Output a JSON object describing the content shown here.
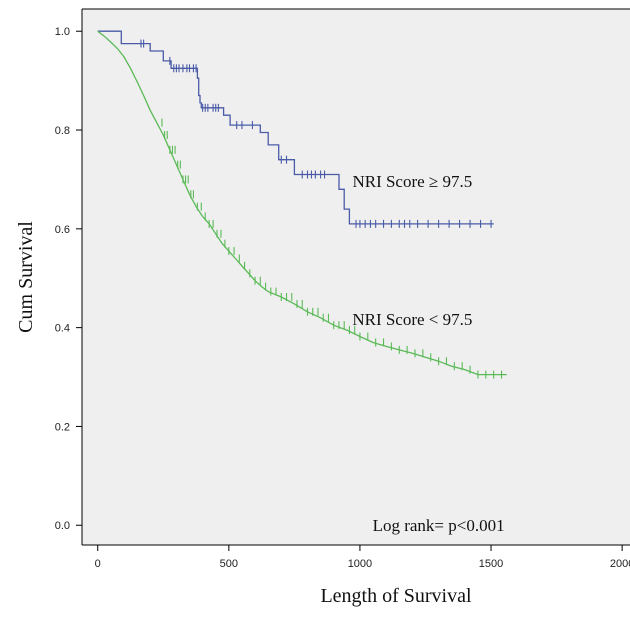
{
  "chart_data": {
    "type": "line",
    "subtype": "kaplan-meier",
    "xlabel": "Length of Survival",
    "ylabel": "Cum Survival",
    "xlim": [
      -60,
      2030
    ],
    "ylim": [
      -0.04,
      1.045
    ],
    "xticks": [
      0,
      500,
      1000,
      1500,
      2000
    ],
    "xtick_labels": [
      "0",
      "500",
      "1000",
      "1500",
      "2000"
    ],
    "yticks": [
      0.0,
      0.2,
      0.4,
      0.6,
      0.8,
      1.0
    ],
    "ytick_labels": [
      "0.0",
      "0.2",
      "0.4",
      "0.6",
      "0.8",
      "1.0"
    ],
    "grid": false,
    "background": "#efefef",
    "series": [
      {
        "name": "NRI Score ≥ 97.5",
        "color": "#4a5ba8",
        "points": [
          [
            0,
            1.0
          ],
          [
            90,
            1.0
          ],
          [
            90,
            0.975
          ],
          [
            200,
            0.975
          ],
          [
            200,
            0.96
          ],
          [
            250,
            0.96
          ],
          [
            250,
            0.94
          ],
          [
            280,
            0.94
          ],
          [
            280,
            0.925
          ],
          [
            380,
            0.925
          ],
          [
            380,
            0.905
          ],
          [
            385,
            0.905
          ],
          [
            385,
            0.87
          ],
          [
            390,
            0.87
          ],
          [
            390,
            0.855
          ],
          [
            395,
            0.855
          ],
          [
            395,
            0.845
          ],
          [
            480,
            0.845
          ],
          [
            480,
            0.83
          ],
          [
            505,
            0.83
          ],
          [
            505,
            0.81
          ],
          [
            620,
            0.81
          ],
          [
            620,
            0.795
          ],
          [
            650,
            0.795
          ],
          [
            650,
            0.77
          ],
          [
            690,
            0.77
          ],
          [
            690,
            0.74
          ],
          [
            750,
            0.74
          ],
          [
            750,
            0.71
          ],
          [
            920,
            0.71
          ],
          [
            920,
            0.68
          ],
          [
            940,
            0.68
          ],
          [
            940,
            0.64
          ],
          [
            960,
            0.64
          ],
          [
            960,
            0.61
          ],
          [
            1510,
            0.61
          ]
        ],
        "censor": [
          165,
          175,
          275,
          290,
          300,
          310,
          325,
          340,
          350,
          365,
          375,
          400,
          410,
          420,
          440,
          450,
          460,
          530,
          550,
          590,
          700,
          720,
          780,
          800,
          815,
          830,
          850,
          865,
          985,
          1000,
          1020,
          1040,
          1060,
          1090,
          1120,
          1150,
          1170,
          1190,
          1220,
          1260,
          1300,
          1340,
          1380,
          1420,
          1460,
          1500
        ],
        "label": "NRI Score ≥ 97.5",
        "label_x": 1200,
        "label_y": 0.685
      },
      {
        "name": "NRI Score < 97.5",
        "color": "#5aba56",
        "points": [
          [
            0,
            1.0
          ],
          [
            25,
            0.99
          ],
          [
            50,
            0.978
          ],
          [
            75,
            0.965
          ],
          [
            100,
            0.948
          ],
          [
            125,
            0.925
          ],
          [
            150,
            0.898
          ],
          [
            175,
            0.87
          ],
          [
            200,
            0.84
          ],
          [
            225,
            0.815
          ],
          [
            250,
            0.79
          ],
          [
            275,
            0.76
          ],
          [
            300,
            0.73
          ],
          [
            325,
            0.7
          ],
          [
            350,
            0.67
          ],
          [
            375,
            0.645
          ],
          [
            400,
            0.625
          ],
          [
            425,
            0.61
          ],
          [
            450,
            0.59
          ],
          [
            475,
            0.57
          ],
          [
            500,
            0.555
          ],
          [
            525,
            0.54
          ],
          [
            550,
            0.525
          ],
          [
            575,
            0.51
          ],
          [
            600,
            0.495
          ],
          [
            625,
            0.483
          ],
          [
            650,
            0.473
          ],
          [
            700,
            0.462
          ],
          [
            750,
            0.448
          ],
          [
            800,
            0.432
          ],
          [
            850,
            0.42
          ],
          [
            900,
            0.405
          ],
          [
            950,
            0.395
          ],
          [
            1000,
            0.382
          ],
          [
            1050,
            0.37
          ],
          [
            1100,
            0.362
          ],
          [
            1150,
            0.355
          ],
          [
            1200,
            0.348
          ],
          [
            1250,
            0.34
          ],
          [
            1300,
            0.332
          ],
          [
            1350,
            0.322
          ],
          [
            1400,
            0.315
          ],
          [
            1450,
            0.305
          ],
          [
            1560,
            0.305
          ]
        ],
        "censor": [
          245,
          255,
          265,
          275,
          285,
          295,
          305,
          315,
          325,
          335,
          345,
          355,
          365,
          380,
          395,
          410,
          425,
          440,
          455,
          470,
          485,
          500,
          520,
          540,
          560,
          580,
          600,
          620,
          640,
          660,
          680,
          700,
          720,
          740,
          760,
          780,
          800,
          820,
          840,
          860,
          880,
          900,
          920,
          940,
          960,
          980,
          1000,
          1030,
          1060,
          1090,
          1120,
          1150,
          1180,
          1210,
          1240,
          1270,
          1300,
          1330,
          1360,
          1390,
          1420,
          1450,
          1480,
          1510,
          1540
        ],
        "label": "NRI Score < 97.5",
        "label_x": 1200,
        "label_y": 0.405
      }
    ],
    "annotations": [
      {
        "text": "Log rank= p<0.001",
        "x": 1300,
        "y": 0.0
      }
    ]
  }
}
